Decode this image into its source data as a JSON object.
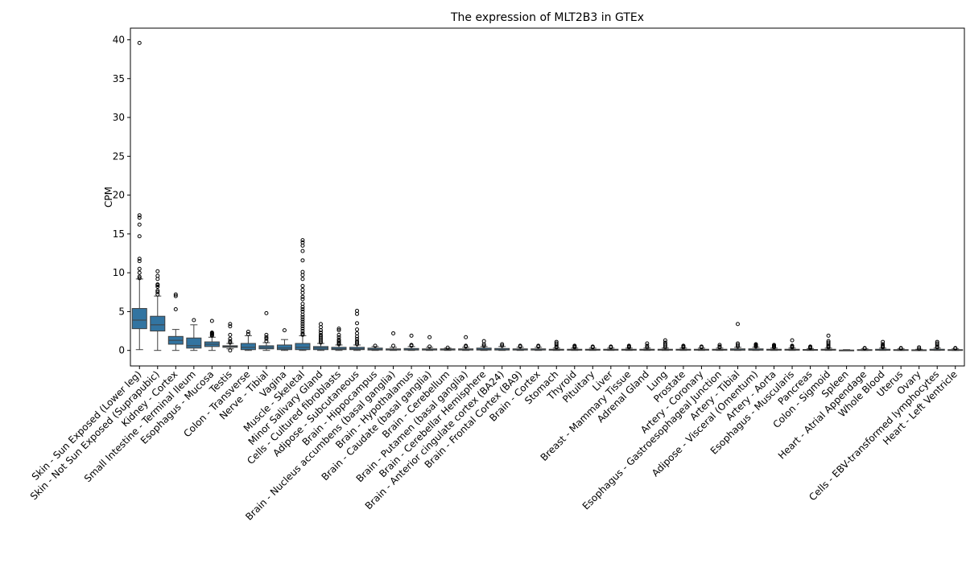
{
  "chart_data": {
    "type": "box",
    "title": "The expression of MLT2B3 in GTEx",
    "xlabel": "",
    "ylabel": "CPM",
    "ylim": [
      -2,
      41.5
    ],
    "yticks": [
      0,
      5,
      10,
      15,
      20,
      25,
      30,
      35,
      40
    ],
    "box_color": "#3274a1",
    "categories": [
      "Skin - Sun Exposed (Lower leg)",
      "Skin - Not Sun Exposed (Suprapubic)",
      "Kidney - Cortex",
      "Small Intestine - Terminal Ileum",
      "Esophagus - Mucosa",
      "Testis",
      "Colon - Transverse",
      "Nerve - Tibial",
      "Vagina",
      "Muscle - Skeletal",
      "Minor Salivary Gland",
      "Cells - Cultured fibroblasts",
      "Adipose - Subcutaneous",
      "Brain - Hippocampus",
      "Brain - Nucleus accumbens (basal ganglia)",
      "Brain - Hypothalamus",
      "Brain - Caudate (basal ganglia)",
      "Brain - Cerebellum",
      "Brain - Putamen (basal ganglia)",
      "Brain - Cerebellar Hemisphere",
      "Brain - Anterior cingulate cortex (BA24)",
      "Brain - Frontal Cortex (BA9)",
      "Brain - Cortex",
      "Stomach",
      "Thyroid",
      "Pituitary",
      "Liver",
      "Breast - Mammary Tissue",
      "Adrenal Gland",
      "Lung",
      "Prostate",
      "Artery - Coronary",
      "Esophagus - Gastroesophageal Junction",
      "Artery - Tibial",
      "Adipose - Visceral (Omentum)",
      "Artery - Aorta",
      "Esophagus - Muscularis",
      "Pancreas",
      "Colon - Sigmoid",
      "Spleen",
      "Heart - Atrial Appendage",
      "Whole Blood",
      "Uterus",
      "Ovary",
      "Cells - EBV-transformed lymphocytes",
      "Heart - Left Ventricle"
    ],
    "boxes": [
      {
        "min": 0.1,
        "q1": 2.8,
        "median": 3.9,
        "q3": 5.4,
        "max": 9.2,
        "outliers": [
          9.3,
          9.5,
          10.0,
          10.5,
          11.5,
          11.8,
          14.7,
          16.2,
          17.1,
          17.4,
          39.6
        ]
      },
      {
        "min": 0.0,
        "q1": 2.5,
        "median": 3.3,
        "q3": 4.4,
        "max": 7.0,
        "outliers": [
          7.2,
          7.5,
          7.7,
          8.2,
          8.4,
          8.5,
          9.2,
          9.6,
          10.2
        ]
      },
      {
        "min": 0.0,
        "q1": 0.8,
        "median": 1.3,
        "q3": 1.8,
        "max": 2.7,
        "outliers": [
          5.3,
          7.0,
          7.2
        ]
      },
      {
        "min": 0.0,
        "q1": 0.3,
        "median": 0.6,
        "q3": 1.6,
        "max": 3.3,
        "outliers": [
          3.9
        ]
      },
      {
        "min": 0.0,
        "q1": 0.5,
        "median": 0.8,
        "q3": 1.1,
        "max": 1.7,
        "outliers": [
          1.9,
          2.0,
          2.1,
          2.2,
          2.3,
          3.8
        ]
      },
      {
        "min": 0.2,
        "q1": 0.4,
        "median": 0.5,
        "q3": 0.6,
        "max": 0.9,
        "outliers": [
          0.0,
          1.0,
          1.2,
          1.5,
          2.0,
          3.1,
          3.4
        ]
      },
      {
        "min": 0.0,
        "q1": 0.1,
        "median": 0.4,
        "q3": 0.9,
        "max": 1.9,
        "outliers": [
          2.1,
          2.4
        ]
      },
      {
        "min": 0.0,
        "q1": 0.2,
        "median": 0.4,
        "q3": 0.6,
        "max": 1.0,
        "outliers": [
          1.2,
          1.5,
          1.7,
          2.0,
          4.8
        ]
      },
      {
        "min": 0.0,
        "q1": 0.1,
        "median": 0.3,
        "q3": 0.7,
        "max": 1.4,
        "outliers": [
          2.6
        ]
      },
      {
        "min": 0.0,
        "q1": 0.1,
        "median": 0.4,
        "q3": 0.9,
        "max": 1.9,
        "outliers": [
          2.0,
          2.2,
          2.5,
          2.8,
          3.1,
          3.4,
          3.7,
          4.0,
          4.3,
          4.6,
          5.0,
          5.3,
          5.6,
          6.0,
          6.6,
          6.9,
          7.4,
          7.8,
          8.3,
          9.2,
          9.7,
          10.1,
          11.6,
          12.8,
          13.5,
          13.9,
          14.2
        ]
      },
      {
        "min": 0.0,
        "q1": 0.1,
        "median": 0.3,
        "q3": 0.5,
        "max": 0.9,
        "outliers": [
          1.0,
          1.2,
          1.4,
          1.6,
          1.8,
          2.0,
          2.3,
          2.6,
          3.0,
          3.4
        ]
      },
      {
        "min": 0.0,
        "q1": 0.1,
        "median": 0.2,
        "q3": 0.4,
        "max": 0.7,
        "outliers": [
          0.8,
          0.9,
          1.0,
          1.2,
          1.4,
          1.7,
          2.0,
          2.6,
          2.8
        ]
      },
      {
        "min": 0.0,
        "q1": 0.1,
        "median": 0.2,
        "q3": 0.4,
        "max": 0.7,
        "outliers": [
          0.8,
          1.0,
          1.2,
          1.5,
          1.8,
          2.2,
          2.7,
          3.5,
          4.7,
          5.1
        ]
      },
      {
        "min": 0.0,
        "q1": 0.05,
        "median": 0.15,
        "q3": 0.3,
        "max": 0.5,
        "outliers": [
          0.6
        ]
      },
      {
        "min": 0.0,
        "q1": 0.05,
        "median": 0.1,
        "q3": 0.2,
        "max": 0.4,
        "outliers": [
          0.6,
          2.2
        ]
      },
      {
        "min": 0.0,
        "q1": 0.05,
        "median": 0.1,
        "q3": 0.25,
        "max": 0.5,
        "outliers": [
          0.6,
          0.7,
          1.9
        ]
      },
      {
        "min": 0.0,
        "q1": 0.05,
        "median": 0.1,
        "q3": 0.2,
        "max": 0.4,
        "outliers": [
          0.5,
          1.7
        ]
      },
      {
        "min": 0.0,
        "q1": 0.05,
        "median": 0.1,
        "q3": 0.2,
        "max": 0.3,
        "outliers": [
          0.35
        ]
      },
      {
        "min": 0.0,
        "q1": 0.05,
        "median": 0.1,
        "q3": 0.2,
        "max": 0.4,
        "outliers": [
          0.5,
          0.6,
          1.7
        ]
      },
      {
        "min": 0.0,
        "q1": 0.05,
        "median": 0.15,
        "q3": 0.3,
        "max": 0.5,
        "outliers": [
          0.6,
          0.8,
          1.2
        ]
      },
      {
        "min": 0.0,
        "q1": 0.05,
        "median": 0.1,
        "q3": 0.25,
        "max": 0.5,
        "outliers": [
          0.6,
          0.8
        ]
      },
      {
        "min": 0.0,
        "q1": 0.05,
        "median": 0.1,
        "q3": 0.2,
        "max": 0.4,
        "outliers": [
          0.5,
          0.6
        ]
      },
      {
        "min": 0.0,
        "q1": 0.05,
        "median": 0.1,
        "q3": 0.2,
        "max": 0.4,
        "outliers": [
          0.5,
          0.6
        ]
      },
      {
        "min": 0.0,
        "q1": 0.03,
        "median": 0.08,
        "q3": 0.15,
        "max": 0.3,
        "outliers": [
          0.4,
          0.5,
          0.7,
          0.9,
          1.1
        ]
      },
      {
        "min": 0.0,
        "q1": 0.03,
        "median": 0.08,
        "q3": 0.15,
        "max": 0.3,
        "outliers": [
          0.4,
          0.5,
          0.6
        ]
      },
      {
        "min": 0.0,
        "q1": 0.03,
        "median": 0.08,
        "q3": 0.15,
        "max": 0.3,
        "outliers": [
          0.4,
          0.5
        ]
      },
      {
        "min": 0.0,
        "q1": 0.03,
        "median": 0.08,
        "q3": 0.15,
        "max": 0.3,
        "outliers": [
          0.4,
          0.5
        ]
      },
      {
        "min": 0.0,
        "q1": 0.03,
        "median": 0.08,
        "q3": 0.15,
        "max": 0.3,
        "outliers": [
          0.4,
          0.5,
          0.6
        ]
      },
      {
        "min": 0.0,
        "q1": 0.03,
        "median": 0.08,
        "q3": 0.15,
        "max": 0.3,
        "outliers": [
          0.4,
          0.6,
          0.9
        ]
      },
      {
        "min": 0.0,
        "q1": 0.03,
        "median": 0.08,
        "q3": 0.15,
        "max": 0.3,
        "outliers": [
          0.4,
          0.6,
          0.8,
          1.0,
          1.3
        ]
      },
      {
        "min": 0.0,
        "q1": 0.03,
        "median": 0.08,
        "q3": 0.15,
        "max": 0.3,
        "outliers": [
          0.4,
          0.5,
          0.6
        ]
      },
      {
        "min": 0.0,
        "q1": 0.03,
        "median": 0.08,
        "q3": 0.15,
        "max": 0.3,
        "outliers": [
          0.4,
          0.5
        ]
      },
      {
        "min": 0.0,
        "q1": 0.03,
        "median": 0.08,
        "q3": 0.15,
        "max": 0.3,
        "outliers": [
          0.4,
          0.5,
          0.7
        ]
      },
      {
        "min": 0.0,
        "q1": 0.03,
        "median": 0.08,
        "q3": 0.2,
        "max": 0.4,
        "outliers": [
          0.5,
          0.7,
          0.9,
          3.4
        ]
      },
      {
        "min": 0.0,
        "q1": 0.03,
        "median": 0.08,
        "q3": 0.2,
        "max": 0.4,
        "outliers": [
          0.5,
          0.6,
          0.7,
          0.8
        ]
      },
      {
        "min": 0.0,
        "q1": 0.03,
        "median": 0.08,
        "q3": 0.15,
        "max": 0.3,
        "outliers": [
          0.4,
          0.5,
          0.6,
          0.7
        ]
      },
      {
        "min": 0.0,
        "q1": 0.03,
        "median": 0.08,
        "q3": 0.15,
        "max": 0.3,
        "outliers": [
          0.4,
          0.5,
          0.6,
          1.3
        ]
      },
      {
        "min": 0.0,
        "q1": 0.03,
        "median": 0.05,
        "q3": 0.12,
        "max": 0.25,
        "outliers": [
          0.3,
          0.4,
          0.5
        ]
      },
      {
        "min": 0.0,
        "q1": 0.03,
        "median": 0.08,
        "q3": 0.15,
        "max": 0.3,
        "outliers": [
          0.4,
          0.5,
          0.6,
          0.8,
          1.0,
          1.2,
          1.9
        ]
      },
      {
        "min": 0.0,
        "q1": 0.0,
        "median": 0.02,
        "q3": 0.05,
        "max": 0.1,
        "outliers": []
      },
      {
        "min": 0.0,
        "q1": 0.0,
        "median": 0.03,
        "q3": 0.1,
        "max": 0.2,
        "outliers": [
          0.25,
          0.3
        ]
      },
      {
        "min": 0.0,
        "q1": 0.02,
        "median": 0.05,
        "q3": 0.15,
        "max": 0.3,
        "outliers": [
          0.4,
          0.5,
          0.6,
          0.8,
          1.1
        ]
      },
      {
        "min": 0.0,
        "q1": 0.0,
        "median": 0.03,
        "q3": 0.1,
        "max": 0.2,
        "outliers": [
          0.25,
          0.3
        ]
      },
      {
        "min": 0.0,
        "q1": 0.0,
        "median": 0.02,
        "q3": 0.08,
        "max": 0.15,
        "outliers": [
          0.2,
          0.4
        ]
      },
      {
        "min": 0.0,
        "q1": 0.02,
        "median": 0.05,
        "q3": 0.15,
        "max": 0.3,
        "outliers": [
          0.4,
          0.5,
          0.7,
          0.9,
          1.1
        ]
      },
      {
        "min": 0.0,
        "q1": 0.0,
        "median": 0.03,
        "q3": 0.1,
        "max": 0.2,
        "outliers": [
          0.25,
          0.3
        ]
      }
    ]
  }
}
